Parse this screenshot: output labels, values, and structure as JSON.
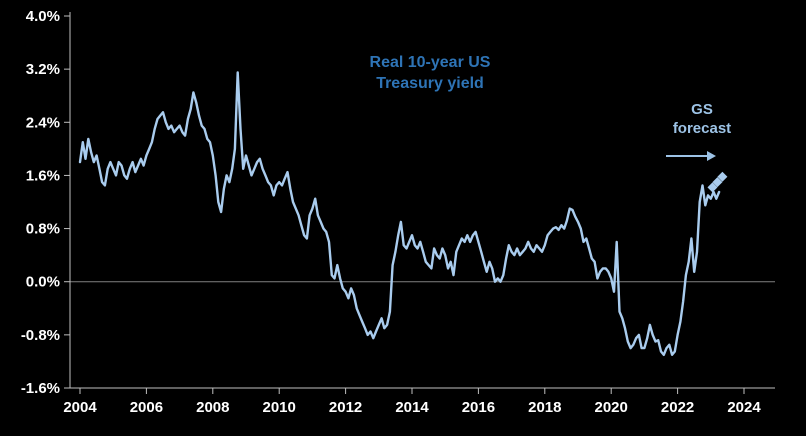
{
  "chart_data": {
    "type": "line",
    "title": "Real 10-year US Treasury yield",
    "title_lines": [
      "Real 10-year US",
      "Treasury yield"
    ],
    "annotation": {
      "line1": "GS",
      "line2": "forecast",
      "arrow_icon": "right-arrow"
    },
    "x_axis": {
      "min": 2003.7,
      "max": 2024.9,
      "tick_values": [
        2004,
        2006,
        2008,
        2010,
        2012,
        2014,
        2016,
        2018,
        2020,
        2022,
        2024
      ],
      "tick_labels": [
        "2004",
        "2006",
        "2008",
        "2010",
        "2012",
        "2014",
        "2016",
        "2018",
        "2020",
        "2022",
        "2024"
      ]
    },
    "y_axis": {
      "min": -1.6,
      "max": 4.0,
      "zero_line": true,
      "tick_values": [
        4.0,
        3.2,
        2.4,
        1.6,
        0.8,
        0.0,
        -0.8,
        -1.6
      ],
      "tick_labels": [
        "4.0%",
        "3.2%",
        "2.4%",
        "1.6%",
        "0.8%",
        "0.0%",
        "-0.8%",
        "-1.6%"
      ]
    },
    "series": [
      {
        "name": "Real 10-year US Treasury yield",
        "x_start": 2004.0,
        "x_step": 0.0833333,
        "values": [
          1.8,
          2.1,
          1.85,
          2.15,
          1.95,
          1.8,
          1.9,
          1.7,
          1.5,
          1.45,
          1.7,
          1.8,
          1.7,
          1.6,
          1.8,
          1.75,
          1.6,
          1.55,
          1.7,
          1.8,
          1.65,
          1.75,
          1.85,
          1.75,
          1.9,
          2.0,
          2.1,
          2.3,
          2.45,
          2.5,
          2.55,
          2.4,
          2.3,
          2.35,
          2.25,
          2.3,
          2.35,
          2.25,
          2.2,
          2.45,
          2.6,
          2.85,
          2.7,
          2.5,
          2.35,
          2.3,
          2.15,
          2.1,
          1.9,
          1.6,
          1.2,
          1.05,
          1.4,
          1.6,
          1.5,
          1.7,
          2.0,
          3.15,
          2.3,
          1.7,
          1.9,
          1.75,
          1.6,
          1.7,
          1.8,
          1.85,
          1.7,
          1.6,
          1.5,
          1.45,
          1.3,
          1.45,
          1.5,
          1.45,
          1.55,
          1.65,
          1.4,
          1.2,
          1.1,
          1.0,
          0.85,
          0.7,
          0.65,
          1.0,
          1.1,
          1.25,
          1.0,
          0.9,
          0.8,
          0.75,
          0.6,
          0.1,
          0.05,
          0.25,
          0.05,
          -0.1,
          -0.15,
          -0.25,
          -0.1,
          -0.2,
          -0.4,
          -0.5,
          -0.6,
          -0.7,
          -0.8,
          -0.75,
          -0.85,
          -0.75,
          -0.65,
          -0.55,
          -0.7,
          -0.65,
          -0.45,
          0.25,
          0.45,
          0.7,
          0.9,
          0.55,
          0.5,
          0.6,
          0.7,
          0.55,
          0.5,
          0.6,
          0.45,
          0.3,
          0.25,
          0.2,
          0.5,
          0.4,
          0.35,
          0.5,
          0.4,
          0.2,
          0.3,
          0.1,
          0.45,
          0.55,
          0.65,
          0.6,
          0.7,
          0.6,
          0.7,
          0.75,
          0.6,
          0.45,
          0.3,
          0.15,
          0.3,
          0.2,
          0.0,
          0.05,
          0.0,
          0.1,
          0.35,
          0.55,
          0.45,
          0.4,
          0.5,
          0.4,
          0.45,
          0.5,
          0.6,
          0.5,
          0.45,
          0.55,
          0.5,
          0.45,
          0.55,
          0.7,
          0.75,
          0.8,
          0.82,
          0.78,
          0.85,
          0.8,
          0.92,
          1.1,
          1.08,
          0.98,
          0.9,
          0.8,
          0.6,
          0.65,
          0.5,
          0.35,
          0.3,
          0.05,
          0.15,
          0.2,
          0.2,
          0.15,
          0.05,
          -0.15,
          0.6,
          -0.45,
          -0.55,
          -0.7,
          -0.9,
          -1.0,
          -0.95,
          -0.85,
          -0.8,
          -1.0,
          -1.0,
          -0.85,
          -0.65,
          -0.8,
          -0.9,
          -0.88,
          -1.05,
          -1.1,
          -1.0,
          -0.95,
          -1.1,
          -1.05,
          -0.8,
          -0.6,
          -0.3,
          0.1,
          0.3,
          0.65,
          0.15,
          0.45,
          1.2,
          1.45,
          1.15,
          1.3,
          1.25,
          1.35,
          1.25,
          1.35
        ]
      }
    ],
    "forecast": {
      "name": "GS forecast",
      "points": [
        [
          2023.05,
          1.42
        ],
        [
          2023.2,
          1.5
        ],
        [
          2023.35,
          1.58
        ]
      ]
    },
    "colors": {
      "background": "#000000",
      "line": "#A9CCEE",
      "forecast_marker": "#A9CCEE",
      "title": "#2E74B6",
      "annotation": "#9DC3E6",
      "axis": "#BFBFBF",
      "zero_line": "#808080",
      "tick_text": "#FFFFFF"
    },
    "legend": "none",
    "grid": "zero-line-only"
  }
}
